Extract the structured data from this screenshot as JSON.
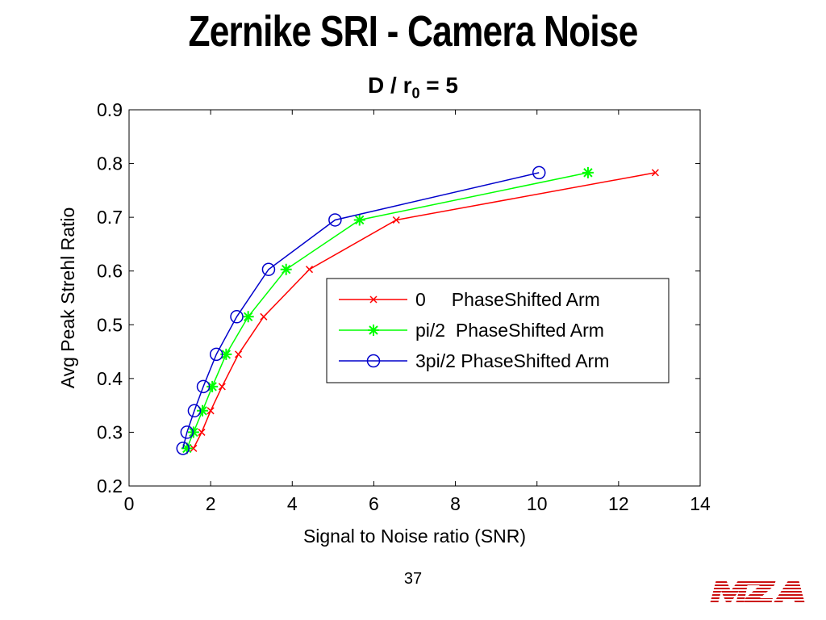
{
  "slide": {
    "title": "Zernike SRI - Camera Noise",
    "subtitle_main": "D / r",
    "subtitle_sub": "0",
    "subtitle_tail": " = 5",
    "page_number": "37",
    "logo_text": "MZA",
    "logo_color": "#cc1111"
  },
  "chart_data": {
    "type": "line",
    "title": "",
    "xlabel": "Signal to Noise ratio (SNR)",
    "ylabel": "Avg Peak Strehl Ratio",
    "xlim": [
      0,
      14
    ],
    "ylim": [
      0.2,
      0.9
    ],
    "xticks": [
      0,
      2,
      4,
      6,
      8,
      10,
      12,
      14
    ],
    "xtick_labels": [
      "0",
      "2",
      "4",
      "6",
      "8",
      "10",
      "12",
      "14"
    ],
    "yticks": [
      0.2,
      0.3,
      0.4,
      0.5,
      0.6,
      0.7,
      0.8,
      0.9
    ],
    "ytick_labels": [
      "0.2",
      "0.3",
      "0.4",
      "0.5",
      "0.6",
      "0.7",
      "0.8",
      "0.9"
    ],
    "grid": false,
    "legend_position": "center-right",
    "series": [
      {
        "name": "0     PhaseShifted Arm",
        "color": "#ff0000",
        "marker": "x",
        "x": [
          1.58,
          1.78,
          2.0,
          2.28,
          2.68,
          3.3,
          4.42,
          6.55,
          12.9
        ],
        "y": [
          0.27,
          0.3,
          0.34,
          0.385,
          0.445,
          0.515,
          0.603,
          0.695,
          0.783
        ]
      },
      {
        "name": "pi/2  PhaseShifted Arm",
        "color": "#00ff00",
        "marker": "*",
        "x": [
          1.42,
          1.58,
          1.8,
          2.04,
          2.38,
          2.92,
          3.85,
          5.65,
          11.25
        ],
        "y": [
          0.27,
          0.3,
          0.34,
          0.385,
          0.445,
          0.515,
          0.603,
          0.695,
          0.783
        ]
      },
      {
        "name": "3pi/2 PhaseShifted Arm",
        "color": "#0000cc",
        "marker": "o",
        "x": [
          1.32,
          1.42,
          1.6,
          1.82,
          2.14,
          2.64,
          3.42,
          5.05,
          10.05
        ],
        "y": [
          0.27,
          0.3,
          0.34,
          0.385,
          0.445,
          0.515,
          0.603,
          0.695,
          0.783
        ]
      }
    ]
  }
}
